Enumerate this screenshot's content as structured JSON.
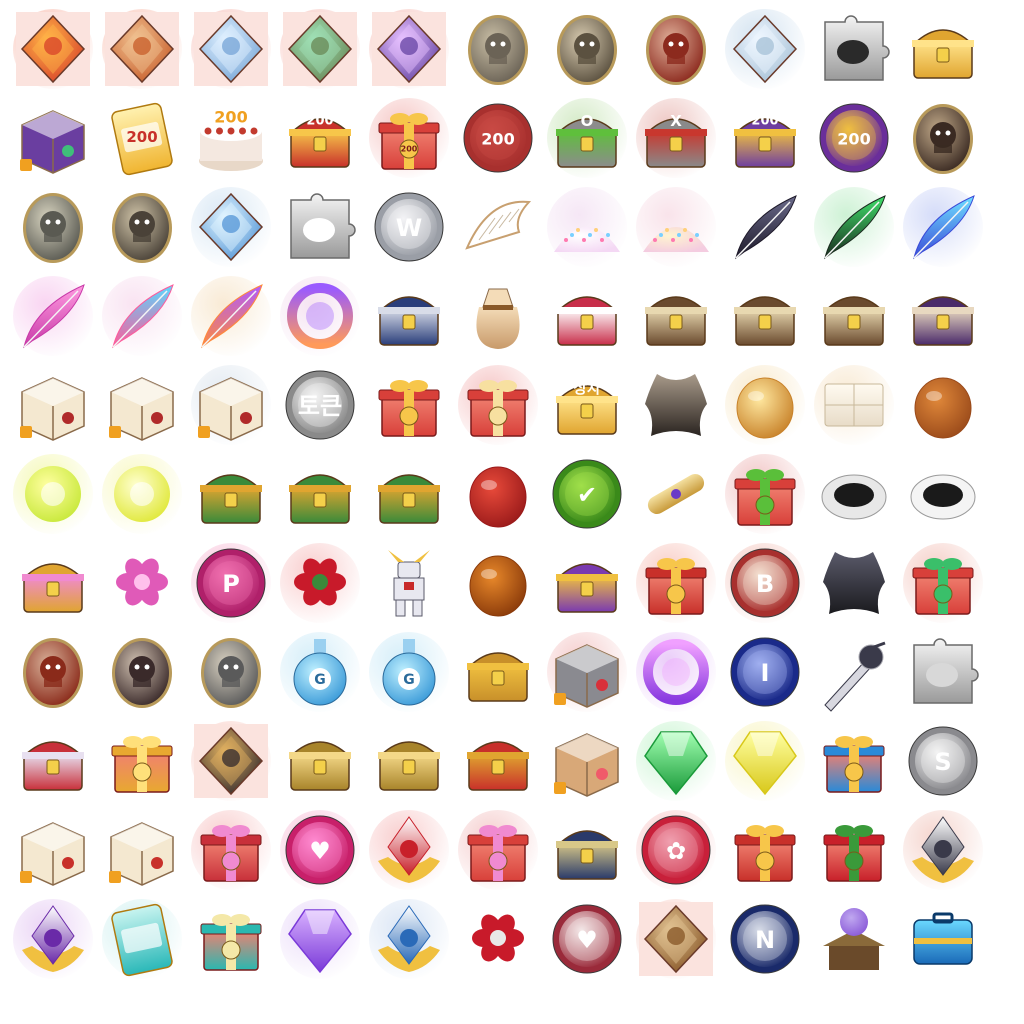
{
  "icons": [
    {
      "name": "crystal-red-icon",
      "type": "crystal",
      "c1": "#d9472b",
      "c2": "#ffb347",
      "glow": "#f7b0a0",
      "frame": true
    },
    {
      "name": "crystal-orange-icon",
      "type": "crystal",
      "c1": "#c9612e",
      "c2": "#f0c090",
      "glow": "#f7b7a6",
      "frame": true
    },
    {
      "name": "crystal-blue-icon",
      "type": "crystal",
      "c1": "#7aa8d8",
      "c2": "#dff0ff",
      "glow": "#f5b8b0",
      "frame": true
    },
    {
      "name": "crystal-green-icon",
      "type": "crystal",
      "c1": "#6b8c5a",
      "c2": "#9fe0b5",
      "glow": "#f5b8b0",
      "frame": true
    },
    {
      "name": "crystal-purple-icon",
      "type": "crystal",
      "c1": "#6c4aa8",
      "c2": "#e6c0ff",
      "glow": "#f5b8b0",
      "frame": true
    },
    {
      "name": "skull-hood-egg-icon",
      "type": "egg",
      "c1": "#6b6356",
      "c2": "#c9bea5",
      "glow": ""
    },
    {
      "name": "skull-warrior-egg-icon",
      "type": "egg",
      "c1": "#5b5140",
      "c2": "#d8cbb0",
      "glow": ""
    },
    {
      "name": "red-demon-egg-icon",
      "type": "egg",
      "c1": "#8c2a1e",
      "c2": "#e0b09a",
      "glow": ""
    },
    {
      "name": "ice-golem-icon",
      "type": "crystal",
      "c1": "#a9c3d8",
      "c2": "#eef6ff",
      "glow": "#cfe0ef",
      "frame": false
    },
    {
      "name": "crow-puzzle-icon",
      "type": "puzzle",
      "c1": "#9a9a9a",
      "c2": "#2a2a2a",
      "glow": ""
    },
    {
      "name": "gold-chest-icon",
      "type": "chest",
      "c1": "#e0a530",
      "c2": "#ffe38a",
      "glow": ""
    },
    {
      "name": "gem-box-icon",
      "type": "box",
      "c1": "#6a3ea0",
      "c2": "#3fbf7a",
      "glow": ""
    },
    {
      "name": "ticket-200-icon",
      "type": "ticket",
      "c1": "#f0b531",
      "c2": "#fff1b0",
      "glow": "",
      "label": "200"
    },
    {
      "name": "cake-200-icon",
      "type": "cake",
      "c1": "#f4e8e0",
      "c2": "#c23a2e",
      "glow": "",
      "label": "200"
    },
    {
      "name": "chest-200-icon",
      "type": "chest",
      "c1": "#c8312b",
      "c2": "#f7c64a",
      "glow": "",
      "label": "200"
    },
    {
      "name": "gift-200-icon",
      "type": "gift",
      "c1": "#d8403a",
      "c2": "#f7c64a",
      "glow": "#f5c2c0",
      "label": "200"
    },
    {
      "name": "stamp-200-icon",
      "type": "coin",
      "c1": "#a8302e",
      "c2": "#c94a44",
      "glow": "",
      "label": "200"
    },
    {
      "name": "green-chest-icon",
      "type": "chest",
      "c1": "#8c8c8c",
      "c2": "#5fbf3c",
      "glow": "#cfe8c0",
      "label": "O"
    },
    {
      "name": "red-x-chest-icon",
      "type": "chest",
      "c1": "#8a8a8a",
      "c2": "#c8372e",
      "glow": "#ecc0bc",
      "label": "X"
    },
    {
      "name": "star-chest-200-icon",
      "type": "chest",
      "c1": "#6e3ea0",
      "c2": "#f0c040",
      "glow": "",
      "label": "200"
    },
    {
      "name": "coin-200-icon",
      "type": "coin",
      "c1": "#6a2e9a",
      "c2": "#f0c040",
      "glow": "",
      "label": "200"
    },
    {
      "name": "black-beast-egg-icon",
      "type": "egg",
      "c1": "#3a2a22",
      "c2": "#c0a888",
      "glow": ""
    },
    {
      "name": "silver-knight-egg-icon",
      "type": "egg",
      "c1": "#5a5a52",
      "c2": "#d8d4c0",
      "glow": ""
    },
    {
      "name": "owl-knight-egg-icon",
      "type": "egg",
      "c1": "#4a4238",
      "c2": "#d0c4a8",
      "glow": ""
    },
    {
      "name": "blue-crystal-icon",
      "type": "crystal",
      "c1": "#5a9ad8",
      "c2": "#e0f4ff",
      "glow": "#d6e6f4",
      "frame": false
    },
    {
      "name": "wing-puzzle-icon",
      "type": "puzzle",
      "c1": "#9a9a9a",
      "c2": "#ffffff",
      "glow": ""
    },
    {
      "name": "coin-w-icon",
      "type": "coin",
      "c1": "#9a9ea6",
      "c2": "#f4f4f6",
      "glow": "",
      "label": "W"
    },
    {
      "name": "wing-card-icon",
      "type": "wing",
      "c1": "#c8a070",
      "c2": "#ffffff",
      "glow": ""
    },
    {
      "name": "sparkle-powder-icon",
      "type": "powder",
      "c1": "#f4d8f4",
      "c2": "#ffffff",
      "glow": "#f4e4f4"
    },
    {
      "name": "rainbow-powder-icon",
      "type": "powder",
      "c1": "#f4cce0",
      "c2": "#fff4d0",
      "glow": "#f8e0e8"
    },
    {
      "name": "black-feather-icon",
      "type": "feather",
      "c1": "#1e1a2a",
      "c2": "#6a6a8a",
      "glow": ""
    },
    {
      "name": "green-feather-icon",
      "type": "feather",
      "c1": "#1a2a1e",
      "c2": "#3fdf6a",
      "glow": "#c8f0d0"
    },
    {
      "name": "blue-feather-icon",
      "type": "feather",
      "c1": "#3a4ad8",
      "c2": "#6fe0ff",
      "glow": "#d0d8f8"
    },
    {
      "name": "pink-feather-icon",
      "type": "feather",
      "c1": "#c83aa8",
      "c2": "#ff9ae0",
      "glow": "#f8d0f0"
    },
    {
      "name": "rainbow-feather-icon",
      "type": "feather",
      "c1": "#ff5a9a",
      "c2": "#5ad8ff",
      "glow": "#f8e0f0"
    },
    {
      "name": "rainbow-feather-sparkle-icon",
      "type": "feather",
      "c1": "#ff8a3a",
      "c2": "#b05aff",
      "glow": "#f8e8d0"
    },
    {
      "name": "prism-ring-icon",
      "type": "ring",
      "c1": "#ff9a5a",
      "c2": "#9a5aff",
      "glow": "#f4e0f0"
    },
    {
      "name": "blue-armor-chest-icon",
      "type": "chest",
      "c1": "#2a3e7a",
      "c2": "#d8dce8",
      "glow": ""
    },
    {
      "name": "feather-pouch-icon",
      "type": "pouch",
      "c1": "#c89a6a",
      "c2": "#f4dcb8",
      "glow": ""
    },
    {
      "name": "winged-chest-icon",
      "type": "chest",
      "c1": "#c82e4a",
      "c2": "#ffffff",
      "glow": ""
    },
    {
      "name": "lock-chest-icon",
      "type": "chest",
      "c1": "#6a4a2e",
      "c2": "#e8d8b0",
      "glow": ""
    },
    {
      "name": "lock-chest-2-icon",
      "type": "chest",
      "c1": "#6a4a2e",
      "c2": "#e8d8b0",
      "glow": ""
    },
    {
      "name": "lock-chest-3-icon",
      "type": "chest",
      "c1": "#6a4a2e",
      "c2": "#e8d8b0",
      "glow": ""
    },
    {
      "name": "purple-lock-chest-icon",
      "type": "chest",
      "c1": "#4a2a6a",
      "c2": "#e8d8c0",
      "glow": ""
    },
    {
      "name": "paw-dice-box-icon",
      "type": "box",
      "c1": "#f4e8d0",
      "c2": "#b02a2a",
      "glow": ""
    },
    {
      "name": "paw-dice-box-2-icon",
      "type": "box",
      "c1": "#f4e8d0",
      "c2": "#b02a2a",
      "glow": ""
    },
    {
      "name": "paw-dice-box-3-icon",
      "type": "box",
      "c1": "#f4e8d0",
      "c2": "#b02a2a",
      "glow": "#e0e8f0"
    },
    {
      "name": "token-coin-icon",
      "type": "coin",
      "c1": "#8a8a8a",
      "c2": "#f4f4f4",
      "glow": "",
      "label": "토큰"
    },
    {
      "name": "red-gift-box-icon",
      "type": "gift",
      "c1": "#d8403a",
      "c2": "#f7c64a",
      "glow": ""
    },
    {
      "name": "red-gift-medal-icon",
      "type": "gift",
      "c1": "#d8403a",
      "c2": "#f7e0a0",
      "glow": "#f5c0c0"
    },
    {
      "name": "flower-chest-label-icon",
      "type": "chest",
      "c1": "#e0a530",
      "c2": "#ffe38a",
      "glow": "",
      "label": "상자"
    },
    {
      "name": "leather-hide-icon",
      "type": "hide",
      "c1": "#2a2420",
      "c2": "#a89a8a",
      "glow": ""
    },
    {
      "name": "golden-egg-icon",
      "type": "oval",
      "c1": "#c8822a",
      "c2": "#ffe8a0",
      "glow": "#f8e8c8"
    },
    {
      "name": "white-chocolate-icon",
      "type": "bar",
      "c1": "#e8dcc8",
      "c2": "#fffaf0",
      "glow": "#f8e8d0"
    },
    {
      "name": "cross-bun-icon",
      "type": "oval",
      "c1": "#9a4a1a",
      "c2": "#e0883a",
      "glow": ""
    },
    {
      "name": "yellow-energy-orb-icon",
      "type": "orb",
      "c1": "#c8e83a",
      "c2": "#ffffa0",
      "glow": "#f4f8b0"
    },
    {
      "name": "yellow-sparkle-orb-icon",
      "type": "orb",
      "c1": "#e0e83a",
      "c2": "#ffffd0",
      "glow": "#f8f8c0"
    },
    {
      "name": "plant-chest-icon",
      "type": "chest",
      "c1": "#3a8a3a",
      "c2": "#e0a530",
      "glow": ""
    },
    {
      "name": "plant-chest-2-icon",
      "type": "chest",
      "c1": "#3a8a3a",
      "c2": "#e0a530",
      "glow": ""
    },
    {
      "name": "plant-chest-3-icon",
      "type": "chest",
      "c1": "#3a8a3a",
      "c2": "#e0a530",
      "glow": ""
    },
    {
      "name": "red-bean-icon",
      "type": "oval",
      "c1": "#9a1a1a",
      "c2": "#e84a3a",
      "glow": ""
    },
    {
      "name": "herb-medal-icon",
      "type": "coin",
      "c1": "#3a8a1a",
      "c2": "#a0e04a",
      "glow": "",
      "label": "✔"
    },
    {
      "name": "scroll-tube-icon",
      "type": "tube",
      "c1": "#c89a3a",
      "c2": "#f4e0a0",
      "glow": ""
    },
    {
      "name": "herb-gift-icon",
      "type": "gift",
      "c1": "#d8403a",
      "c2": "#5abf3a",
      "glow": "#f0c0c0"
    },
    {
      "name": "black-sesame-plate-icon",
      "type": "bowl",
      "c1": "#1a1a1a",
      "c2": "#e8e8e8",
      "glow": ""
    },
    {
      "name": "black-noodle-bowl-icon",
      "type": "bowl",
      "c1": "#1a1a1a",
      "c2": "#f4f4f4",
      "glow": ""
    },
    {
      "name": "flower-gold-chest-icon",
      "type": "chest",
      "c1": "#e0a530",
      "c2": "#f08ad0",
      "glow": ""
    },
    {
      "name": "pink-azalea-icon",
      "type": "flower",
      "c1": "#e05ab8",
      "c2": "#ffc0ec",
      "glow": ""
    },
    {
      "name": "coin-p-icon",
      "type": "coin",
      "c1": "#b0206a",
      "c2": "#f070b0",
      "glow": "#f8c0d8",
      "label": "P"
    },
    {
      "name": "red-rose-icon",
      "type": "flower",
      "c1": "#c81a2a",
      "c2": "#3a8a3a",
      "glow": "#f8c8c8"
    },
    {
      "name": "gundam-robot-icon",
      "type": "robot",
      "c1": "#e8e8f0",
      "c2": "#c82a2a",
      "glow": ""
    },
    {
      "name": "roast-chicken-icon",
      "type": "oval",
      "c1": "#8a3a0a",
      "c2": "#e8882a",
      "glow": ""
    },
    {
      "name": "purple-dice-chest-icon",
      "type": "chest",
      "c1": "#7a3ab0",
      "c2": "#f0c040",
      "glow": ""
    },
    {
      "name": "star-gift-box-icon",
      "type": "gift",
      "c1": "#c8302a",
      "c2": "#f7c64a",
      "glow": "#f8c8c0"
    },
    {
      "name": "coin-b-icon",
      "type": "coin",
      "c1": "#a8302e",
      "c2": "#f4e0d0",
      "glow": "#f4c8c0",
      "label": "B"
    },
    {
      "name": "black-cloth-icon",
      "type": "hide",
      "c1": "#1a1a1e",
      "c2": "#5a5a6a",
      "glow": ""
    },
    {
      "name": "green-gem-gift-icon",
      "type": "gift",
      "c1": "#d8403a",
      "c2": "#3abf6a",
      "glow": "#f4c8c0"
    },
    {
      "name": "red-ogre-egg-icon",
      "type": "egg",
      "c1": "#8a2a1a",
      "c2": "#d8b098",
      "glow": ""
    },
    {
      "name": "dark-lord-egg-icon",
      "type": "egg",
      "c1": "#3a2a2a",
      "c2": "#d0c0b0",
      "glow": ""
    },
    {
      "name": "silver-beast-egg-icon",
      "type": "egg",
      "c1": "#5a5a5a",
      "c2": "#d8d0c0",
      "glow": ""
    },
    {
      "name": "exp-potion-icon",
      "type": "potion",
      "c1": "#3a9ad8",
      "c2": "#bff0ff",
      "glow": "#d0ecf8",
      "label": "G"
    },
    {
      "name": "gold-potion-icon",
      "type": "potion",
      "c1": "#3a9ad8",
      "c2": "#bff0ff",
      "glow": "#d0ecf8",
      "label": "G"
    },
    {
      "name": "gem-lock-chest-icon",
      "type": "chest",
      "c1": "#c8902a",
      "c2": "#f0c040",
      "glow": ""
    },
    {
      "name": "red-ribbon-tin-icon",
      "type": "box",
      "c1": "#8a8a90",
      "c2": "#d8303a",
      "glow": "#f4c8c8"
    },
    {
      "name": "purple-magic-ring-icon",
      "type": "ring",
      "c1": "#8a3ae0",
      "c2": "#f0a0ff",
      "glow": "#e8c8f8"
    },
    {
      "name": "coin-i-icon",
      "type": "coin",
      "c1": "#1a2a8a",
      "c2": "#a0b0f0",
      "glow": "",
      "label": "I"
    },
    {
      "name": "compass-dagger-icon",
      "type": "dagger",
      "c1": "#3a3a4a",
      "c2": "#d8d8e0",
      "glow": ""
    },
    {
      "name": "compass-puzzle-icon",
      "type": "puzzle",
      "c1": "#9a9a9a",
      "c2": "#d8d8d8",
      "glow": ""
    },
    {
      "name": "owl-chest-icon",
      "type": "chest",
      "c1": "#c8303a",
      "c2": "#e8e0f0",
      "glow": ""
    },
    {
      "name": "gold-gift-box-icon",
      "type": "gift",
      "c1": "#e8a830",
      "c2": "#ffe07a",
      "glow": ""
    },
    {
      "name": "dark-knight-crystal-icon",
      "type": "crystal",
      "c1": "#3a3030",
      "c2": "#e0b060",
      "glow": "#f8c8c0",
      "frame": true
    },
    {
      "name": "star-treasure-box-icon",
      "type": "chest",
      "c1": "#a8842a",
      "c2": "#f4d888",
      "glow": ""
    },
    {
      "name": "star-treasure-box-2-icon",
      "type": "chest",
      "c1": "#a8842a",
      "c2": "#f4d888",
      "glow": ""
    },
    {
      "name": "rose-chest-icon",
      "type": "chest",
      "c1": "#c8302a",
      "c2": "#e0a530",
      "glow": ""
    },
    {
      "name": "candy-box-icon",
      "type": "box",
      "c1": "#d8a878",
      "c2": "#f05a6a",
      "glow": ""
    },
    {
      "name": "green-gem-icon",
      "type": "gem",
      "c1": "#1a9a3a",
      "c2": "#a0ffb0",
      "glow": "#c8f4d0"
    },
    {
      "name": "yellow-gem-icon",
      "type": "gem",
      "c1": "#d8c81a",
      "c2": "#ffffa0",
      "glow": "#f8f4c0"
    },
    {
      "name": "blue-gift-box-icon",
      "type": "gift",
      "c1": "#2a8ad8",
      "c2": "#f7c64a",
      "glow": ""
    },
    {
      "name": "coin-s-icon",
      "type": "coin",
      "c1": "#8a8a8e",
      "c2": "#f4f4f4",
      "glow": "",
      "label": "S"
    },
    {
      "name": "arrow-dice-box-icon",
      "type": "box",
      "c1": "#f4e8d0",
      "c2": "#c8302a",
      "glow": ""
    },
    {
      "name": "sword-dice-box-icon",
      "type": "box",
      "c1": "#f4e8d0",
      "c2": "#c8302a",
      "glow": ""
    },
    {
      "name": "pink-flower-gift-icon",
      "type": "gift",
      "c1": "#c8303a",
      "c2": "#f08ad0",
      "glow": "#f8c8c8"
    },
    {
      "name": "pink-heart-coin-icon",
      "type": "coin",
      "c1": "#c8206a",
      "c2": "#ff8ad0",
      "glow": "#f8c0d8",
      "label": "♥"
    },
    {
      "name": "red-rank-emblem-icon",
      "type": "emblem",
      "c1": "#c8202a",
      "c2": "#f0c040",
      "glow": "#f8c8c8"
    },
    {
      "name": "flower-medal-gift-icon",
      "type": "gift",
      "c1": "#d8403a",
      "c2": "#f08ad0",
      "glow": "#f4c8c8"
    },
    {
      "name": "skull-sword-chest-icon",
      "type": "chest",
      "c1": "#2a3a6a",
      "c2": "#d8c888",
      "glow": ""
    },
    {
      "name": "red-flower-coin-icon",
      "type": "coin",
      "c1": "#c8203a",
      "c2": "#f0a0b0",
      "glow": "#f8c8c8",
      "label": "✿"
    },
    {
      "name": "red-gold-gift-icon",
      "type": "gift",
      "c1": "#c8302a",
      "c2": "#f7c64a",
      "glow": ""
    },
    {
      "name": "rose-gift-box-icon",
      "type": "gift",
      "c1": "#c8202a",
      "c2": "#3a9a3a",
      "glow": ""
    },
    {
      "name": "dark-rank-emblem-icon",
      "type": "emblem",
      "c1": "#3a3a4a",
      "c2": "#f0c040",
      "glow": "#f4d0c8"
    },
    {
      "name": "purple-rank-emblem-icon",
      "type": "emblem",
      "c1": "#6a2aa8",
      "c2": "#f0c040",
      "glow": "#e8d0f4"
    },
    {
      "name": "teal-ticket-icon",
      "type": "ticket",
      "c1": "#2ab8b8",
      "c2": "#c8f4f0",
      "glow": "#d0f0f0",
      "label": ""
    },
    {
      "name": "teal-popcorn-gift-icon",
      "type": "gift",
      "c1": "#2ab8b0",
      "c2": "#f4e8a8",
      "glow": ""
    },
    {
      "name": "purple-diamond-icon",
      "type": "gem",
      "c1": "#7a3ad8",
      "c2": "#d8b0ff",
      "glow": "#e8d8f8"
    },
    {
      "name": "blue-rank-emblem-icon",
      "type": "emblem",
      "c1": "#2a6ab8",
      "c2": "#f0c040",
      "glow": "#d8e4f4"
    },
    {
      "name": "rose-bouquet-icon",
      "type": "flower",
      "c1": "#c81a2a",
      "c2": "#e8e8e8",
      "glow": ""
    },
    {
      "name": "heart-frame-coin-icon",
      "type": "coin",
      "c1": "#9a2a3a",
      "c2": "#f4e8e8",
      "glow": "",
      "label": "♥"
    },
    {
      "name": "bronze-crystal-icon",
      "type": "crystal",
      "c1": "#8a5a2a",
      "c2": "#e0c090",
      "glow": "#f8d0c8",
      "frame": true
    },
    {
      "name": "coin-n-icon",
      "type": "coin",
      "c1": "#1a2a6a",
      "c2": "#d8dce8",
      "glow": "",
      "label": "N"
    },
    {
      "name": "crystal-shrine-icon",
      "type": "shrine",
      "c1": "#6a4a2a",
      "c2": "#c0a8f0",
      "glow": ""
    },
    {
      "name": "blue-case-icon",
      "type": "case",
      "c1": "#1a6ab8",
      "c2": "#6ad8ff",
      "glow": ""
    }
  ]
}
